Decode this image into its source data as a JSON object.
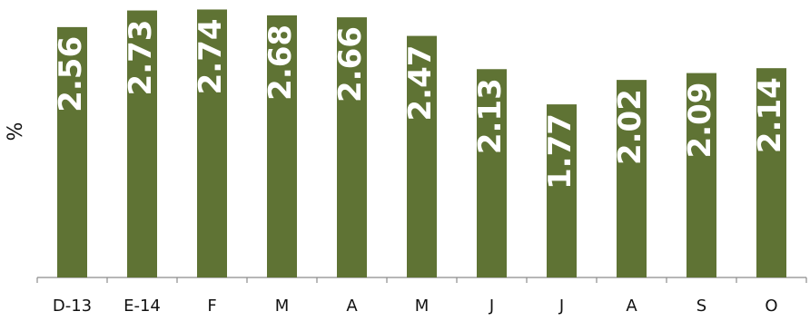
{
  "chart_data": {
    "type": "bar",
    "categories": [
      "D-13",
      "E-14",
      "F",
      "M",
      "A",
      "M",
      "J",
      "J",
      "A",
      "S",
      "O"
    ],
    "values": [
      2.56,
      2.73,
      2.74,
      2.68,
      2.66,
      2.47,
      2.13,
      1.77,
      2.02,
      2.09,
      2.14
    ],
    "data_labels": [
      "2.56",
      "2.73",
      "2.74",
      "2.68",
      "2.66",
      "2.47",
      "2.13",
      "1.77",
      "2.02",
      "2.09",
      "2.14"
    ],
    "title": "",
    "xlabel": "",
    "ylabel": "%",
    "ylim": [
      0,
      2.8
    ],
    "grid": false,
    "bar_color": "#5f7334",
    "axis_color": "#8c8c8c",
    "data_label_color": "#ffffff"
  }
}
